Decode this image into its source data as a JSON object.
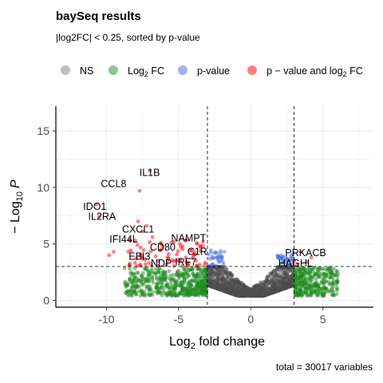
{
  "chart_data": {
    "type": "scatter",
    "title": "baySeq results",
    "subtitle": "|log2FC| < 0.25, sorted by p-value",
    "caption": "total = 30017 variables",
    "xlabel": {
      "base": "Log",
      "sub": "2",
      "rest": " fold change"
    },
    "ylabel": {
      "prefix": "− Log",
      "sub": "10",
      "var": "P"
    },
    "xlim": [
      -13.5,
      8.5
    ],
    "ylim": [
      -0.6,
      17.2
    ],
    "xticks": [
      -10,
      -5,
      0,
      5
    ],
    "yticks": [
      0,
      5,
      10,
      15
    ],
    "grid": true,
    "legend_position": "top",
    "cutoffs": {
      "fold_change": [
        -3,
        3
      ],
      "p_value_line_y": 3
    },
    "legend": [
      {
        "key": "NS",
        "text": "NS",
        "color": "#808080"
      },
      {
        "key": "FC",
        "text_parts": [
          "Log",
          "2",
          " FC"
        ],
        "color": "#228b22"
      },
      {
        "key": "P",
        "text": "p-value",
        "color": "#4169e1"
      },
      {
        "key": "FC_P",
        "text_parts": [
          "p − value and log",
          "2",
          " FC"
        ],
        "color": "#ff0000"
      }
    ],
    "colors": {
      "NS": "#4d4d4d",
      "FC": "#228b22",
      "P": "#4169e1",
      "FC_P": "#ff0000"
    },
    "labeled_points": [
      {
        "gene": "IL1B",
        "x": -7.0,
        "y": 11.5,
        "lx": -7.0,
        "ly": 11.3
      },
      {
        "gene": "CCL8",
        "x": -7.7,
        "y": 9.7,
        "lx": -9.5,
        "ly": 10.3
      },
      {
        "gene": "IDO1",
        "x": -10.7,
        "y": 8.5,
        "lx": -10.8,
        "ly": 8.3
      },
      {
        "gene": "IL2RA",
        "x": -10.5,
        "y": 7.4,
        "lx": -10.3,
        "ly": 7.4
      },
      {
        "gene": "CXCL1",
        "x": -7.5,
        "y": 6.1,
        "lx": -7.8,
        "ly": 6.3
      },
      {
        "gene": "IFI44L",
        "x": -8.0,
        "y": 5.3,
        "lx": -8.8,
        "ly": 5.4
      },
      {
        "gene": "NAMPT",
        "x": -3.7,
        "y": 5.0,
        "lx": -4.3,
        "ly": 5.5
      },
      {
        "gene": "CD80",
        "x": -6.2,
        "y": 4.5,
        "lx": -6.1,
        "ly": 4.7
      },
      {
        "gene": "C1R",
        "x": -4.1,
        "y": 4.4,
        "lx": -3.7,
        "ly": 4.3
      },
      {
        "gene": "EBI3",
        "x": -7.6,
        "y": 4.1,
        "lx": -7.7,
        "ly": 3.9
      },
      {
        "gene": "IRF7",
        "x": -4.5,
        "y": 3.8,
        "lx": -4.5,
        "ly": 3.4
      },
      {
        "gene": "NDP",
        "x": -6.4,
        "y": 3.5,
        "lx": -6.2,
        "ly": 3.3
      },
      {
        "gene": "PRKACB",
        "x": 3.5,
        "y": 4.3,
        "lx": 3.8,
        "ly": 4.2
      },
      {
        "gene": "HAGHL",
        "x": 3.0,
        "y": 3.5,
        "lx": 3.1,
        "ly": 3.3
      }
    ]
  }
}
